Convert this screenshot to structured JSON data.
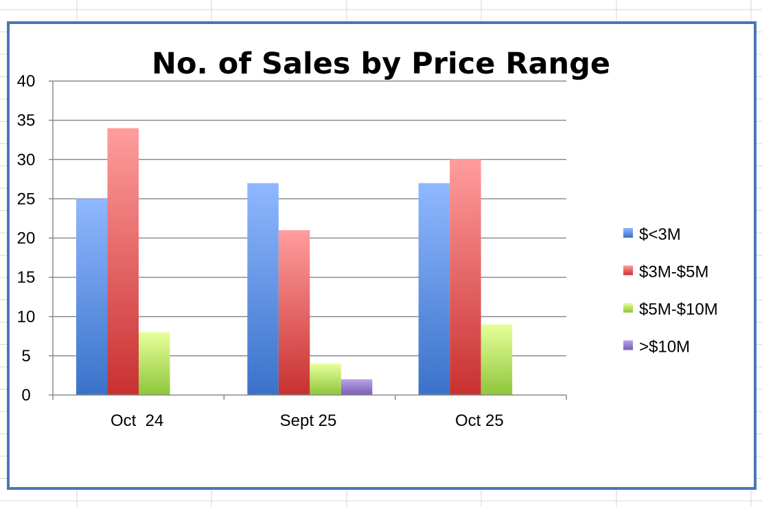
{
  "colors": {
    "frame": "#4a77b4",
    "gridline": "#8c8c8c",
    "sheet_grid": "#d4d4d4",
    "series": [
      {
        "top": "#8fb8ff",
        "bottom": "#3a72c9"
      },
      {
        "top": "#ff9d9d",
        "bottom": "#c93030"
      },
      {
        "top": "#e6ff9a",
        "bottom": "#8ec63a"
      },
      {
        "top": "#b9a3e6",
        "bottom": "#7a5cb8"
      }
    ]
  },
  "chart_data": {
    "type": "bar",
    "title": "No. of Sales by Price Range",
    "xlabel": "",
    "ylabel": "",
    "categories": [
      "Oct  24",
      "Sept 25",
      "Oct 25"
    ],
    "series": [
      {
        "name": "$<3M",
        "values": [
          25,
          27,
          27
        ]
      },
      {
        "name": "$3M-$5M",
        "values": [
          34,
          21,
          30
        ]
      },
      {
        "name": "$5M-$10M",
        "values": [
          8,
          4,
          9
        ]
      },
      {
        "name": ">$10M",
        "values": [
          0,
          2,
          0
        ]
      }
    ],
    "ylim": [
      0,
      40
    ],
    "yticks": [
      "0",
      "5",
      "10",
      "15",
      "20",
      "25",
      "30",
      "35",
      "40"
    ],
    "grid": true,
    "legend_position": "right"
  }
}
